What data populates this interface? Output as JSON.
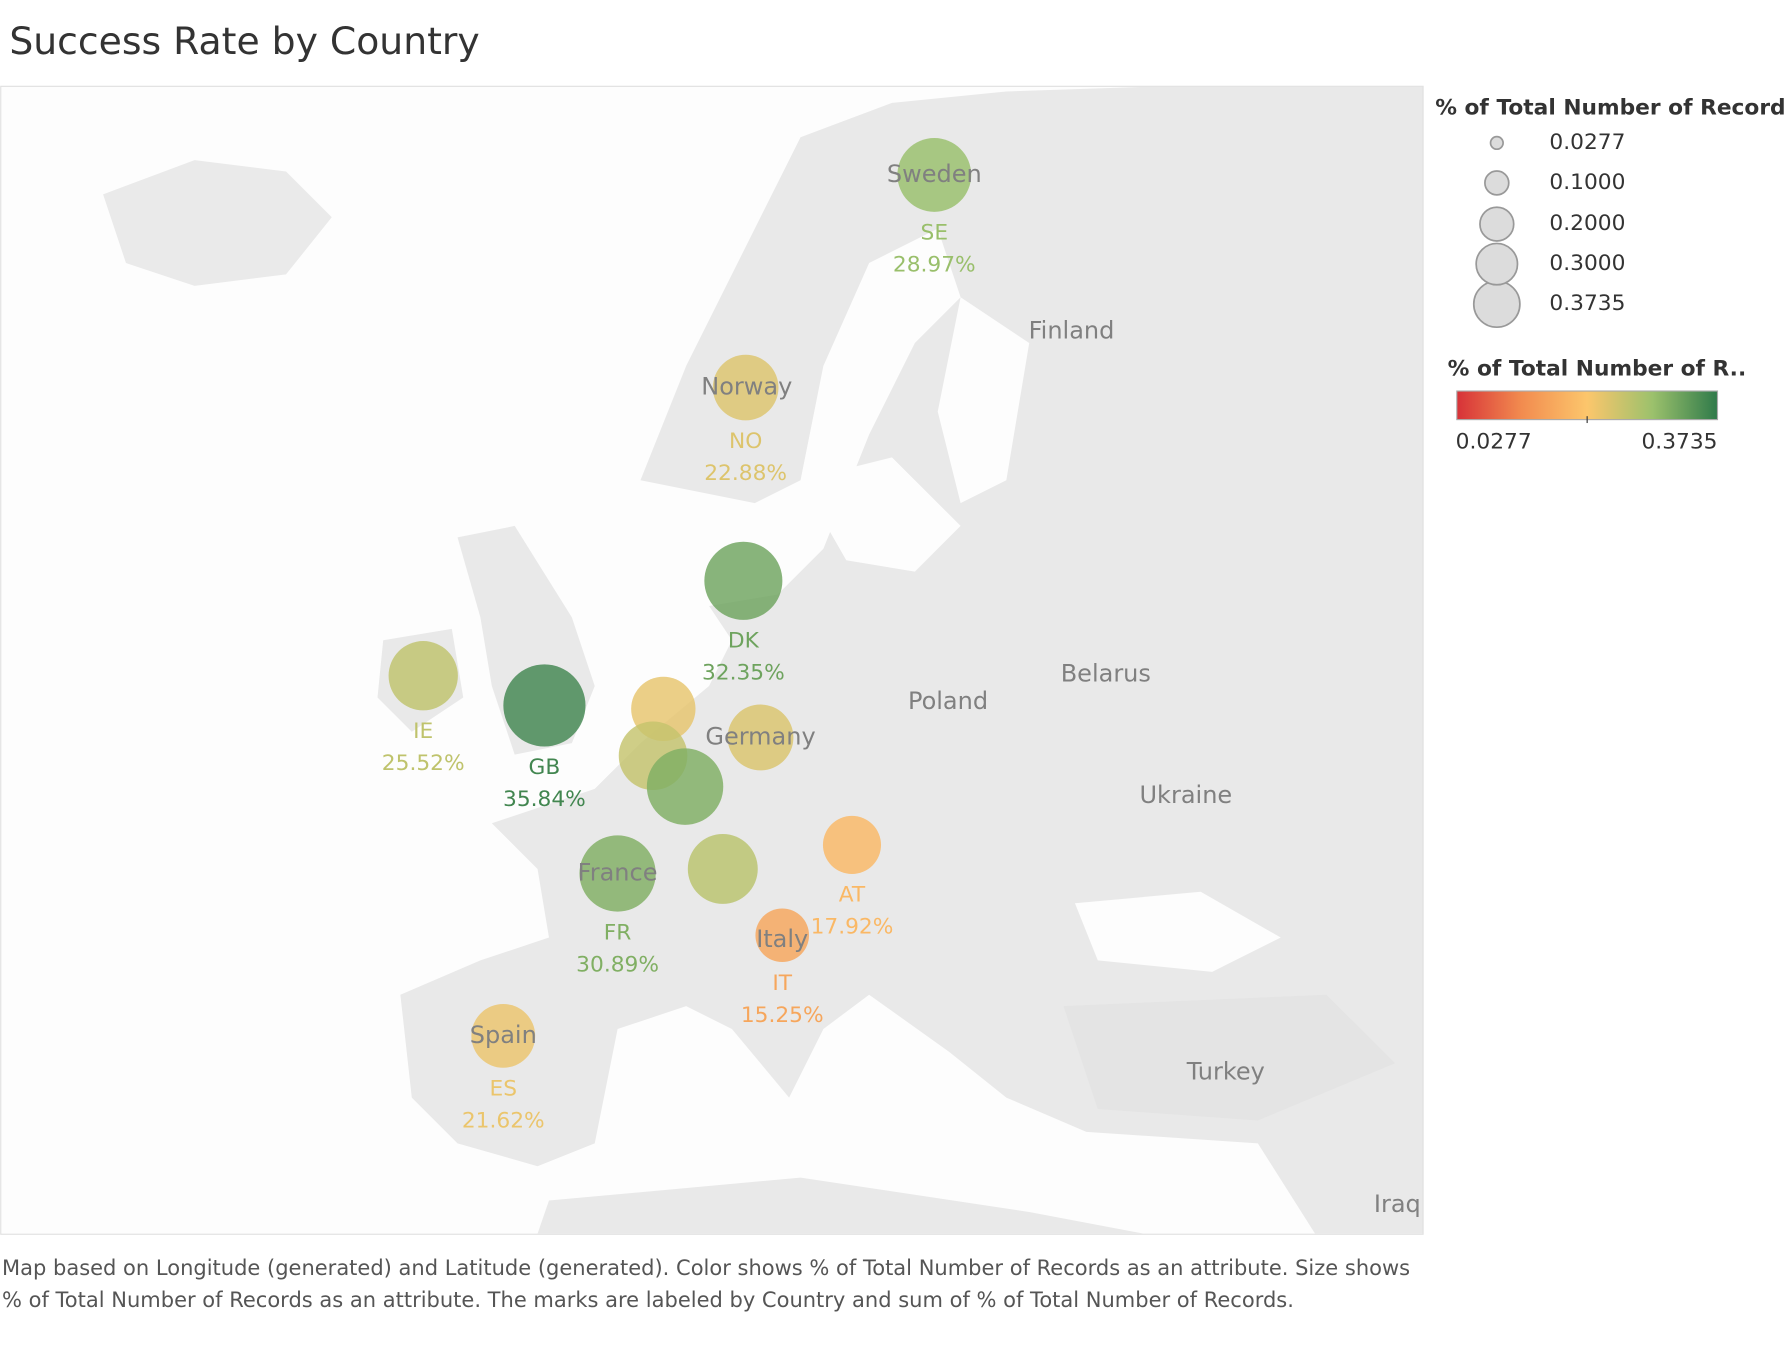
{
  "chart_data": {
    "type": "symbol-map",
    "title": "Success Rate by Country",
    "categories": [
      "SE",
      "NO",
      "DK",
      "IE",
      "GB",
      null,
      null,
      null,
      null,
      null,
      "FR",
      "AT",
      "IT",
      "ES"
    ],
    "values": [
      0.2897,
      0.2288,
      0.3235,
      0.2552,
      0.3584,
      0.22,
      0.25,
      0.23,
      0.31,
      0.26,
      0.3089,
      0.1792,
      0.1525,
      0.2162
    ],
    "value_labels": [
      "28.97%",
      "22.88%",
      "32.35%",
      "25.52%",
      "35.84%",
      null,
      null,
      null,
      null,
      null,
      "30.89%",
      "17.92%",
      "15.25%",
      "21.62%"
    ],
    "map_labels": [
      "Sweden",
      "Finland",
      "Norway",
      "Belarus",
      "Poland",
      "Germany",
      "Ukraine",
      "France",
      "Italy",
      "Spain",
      "Turkey",
      "Iraq"
    ],
    "size_legend": {
      "title": "% of Total Number of Records",
      "ticks": [
        {
          "value": 0.0277,
          "label": "0.0277"
        },
        {
          "value": 0.1,
          "label": "0.1000"
        },
        {
          "value": 0.2,
          "label": "0.2000"
        },
        {
          "value": 0.3,
          "label": "0.3000"
        },
        {
          "value": 0.3735,
          "label": "0.3735"
        }
      ]
    },
    "color_legend": {
      "title": "% of Total Number of R..",
      "lim": [
        {
          "value": 0.0277,
          "label": "0.0277"
        },
        {
          "value": 0.3735,
          "label": "0.3735"
        }
      ],
      "colors": [
        "#d73238",
        "#f28c4f",
        "#fcc66c",
        "#9cc16c",
        "#2f7a4a"
      ]
    },
    "caption": "Map based on Longitude (generated) and Latitude (generated).  Color shows % of Total Number of Records as an attribute.  Size shows % of Total Number of Records as an attribute.  The marks are labeled by Country and sum of % of Total Number of Records."
  }
}
